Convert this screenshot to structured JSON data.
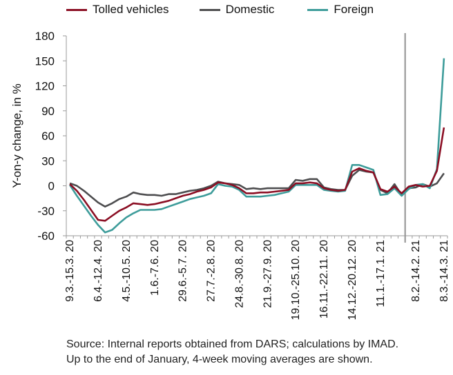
{
  "colors": {
    "tolled": "#8b0e23",
    "domestic": "#4d4d4f",
    "foreign": "#3d9c9a",
    "axis": "#9a9a9a"
  },
  "footer": {
    "line1": "Source: Internal reports obtained from DARS; calculations by IMAD.",
    "line2": "Up to the end of January, 4-week moving averages are shown."
  },
  "chart_data": {
    "type": "line",
    "xlabel": "",
    "ylabel": "Y-on-y change, in %",
    "ylim": [
      -60,
      180
    ],
    "yticks": [
      -60,
      -30,
      0,
      30,
      60,
      90,
      120,
      150,
      180
    ],
    "x_tick_labels": [
      "9.3.-15.3. 20",
      "6.4.-12.4. 20",
      "4.5.-10.5. 20",
      "1.6.-7.6. 20",
      "29.6.-5.7. 20",
      "27.7.-2.8. 20",
      "24.8.-30.8. 20",
      "21.9.-27.9. 20",
      "19.10.-25.10. 20",
      "16.11.-22.11. 20",
      "14.12.-20.12. 20",
      "11.1.-17.1. 21",
      "8.2.-14.2. 21",
      "8.3.-14.3. 21"
    ],
    "x_tick_positions": [
      0,
      4,
      8,
      12,
      16,
      20,
      24,
      28,
      32,
      36,
      40,
      44,
      49,
      53
    ],
    "marker_index": 47.5,
    "grid": false,
    "legend_position": "top",
    "series": [
      {
        "name": "Tolled vehicles",
        "color": "#8b0e23",
        "values": [
          2,
          -6,
          -17,
          -29,
          -41,
          -42,
          -36,
          -30,
          -26,
          -21,
          -22,
          -23,
          -22,
          -20,
          -18,
          -15,
          -12,
          -10,
          -7,
          -5,
          -2,
          4,
          3,
          1,
          -3,
          -9,
          -9,
          -8,
          -8,
          -7,
          -6,
          -5,
          3,
          3,
          4,
          3,
          -3,
          -5,
          -6,
          -5,
          17,
          21,
          18,
          16,
          -4,
          -7,
          -1,
          -9,
          -1,
          1,
          -1,
          0,
          18,
          70
        ]
      },
      {
        "name": "Domestic",
        "color": "#4d4d4f",
        "values": [
          3,
          0,
          -6,
          -13,
          -20,
          -25,
          -21,
          -16,
          -13,
          -8,
          -10,
          -11,
          -11,
          -12,
          -10,
          -10,
          -8,
          -6,
          -5,
          -3,
          0,
          5,
          3,
          2,
          1,
          -4,
          -3,
          -4,
          -3,
          -3,
          -3,
          -3,
          7,
          6,
          8,
          8,
          -2,
          -4,
          -5,
          -5,
          12,
          19,
          17,
          16,
          -5,
          -9,
          2,
          -11,
          -3,
          -2,
          2,
          -1,
          3,
          15
        ]
      },
      {
        "name": "Foreign",
        "color": "#3d9c9a",
        "values": [
          1,
          -12,
          -24,
          -36,
          -47,
          -56,
          -53,
          -45,
          -38,
          -33,
          -29,
          -29,
          -29,
          -28,
          -25,
          -22,
          -19,
          -16,
          -14,
          -12,
          -9,
          2,
          0,
          -1,
          -5,
          -13,
          -13,
          -13,
          -12,
          -11,
          -9,
          -7,
          1,
          1,
          1,
          1,
          -5,
          -6,
          -7,
          -6,
          25,
          25,
          22,
          19,
          -11,
          -10,
          -3,
          -12,
          -4,
          1,
          2,
          -3,
          20,
          153
        ]
      }
    ]
  }
}
